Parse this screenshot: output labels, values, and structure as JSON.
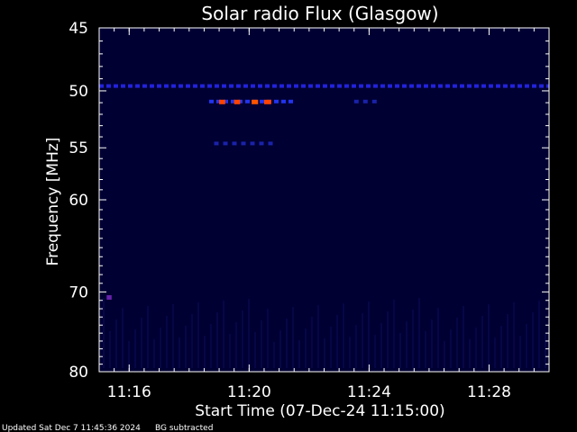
{
  "chart_data": {
    "type": "heatmap",
    "title": "Solar radio Flux (Glasgow)",
    "ylabel": "Frequency [MHz]",
    "xlabel": "Start Time (07-Dec-24 11:15:00)",
    "y_scale": "log",
    "ylim": [
      45,
      80
    ],
    "y_inverted": true,
    "xlim": [
      "11:15:00",
      "11:30:00"
    ],
    "y_ticks": [
      45,
      50,
      55,
      60,
      70,
      80
    ],
    "y_tick_labels": [
      "45",
      "50",
      "55",
      "60",
      "70",
      "80"
    ],
    "x_ticks": [
      "11:16",
      "11:20",
      "11:24",
      "11:28"
    ],
    "background_color": "#000033",
    "features": [
      {
        "kind": "band",
        "freq_mhz": 49.6,
        "t_start": "11:15:00",
        "t_end": "11:30:00",
        "intensity": "medium",
        "color": "#2222dd"
      },
      {
        "kind": "band",
        "freq_mhz": 50.9,
        "t_start": "11:18:40",
        "t_end": "11:21:30",
        "intensity": "medium",
        "color": "#2233ee"
      },
      {
        "kind": "burst",
        "freq_mhz": 50.9,
        "t_start": "11:19:00",
        "t_end": "11:19:12",
        "intensity": "high",
        "color": "#ff4400"
      },
      {
        "kind": "burst",
        "freq_mhz": 50.9,
        "t_start": "11:19:30",
        "t_end": "11:19:42",
        "intensity": "high",
        "color": "#ff4400"
      },
      {
        "kind": "burst",
        "freq_mhz": 50.9,
        "t_start": "11:20:05",
        "t_end": "11:20:18",
        "intensity": "high",
        "color": "#ff5500"
      },
      {
        "kind": "burst",
        "freq_mhz": 50.9,
        "t_start": "11:20:30",
        "t_end": "11:20:44",
        "intensity": "high",
        "color": "#ff4400"
      },
      {
        "kind": "band",
        "freq_mhz": 50.9,
        "t_start": "11:23:30",
        "t_end": "11:24:10",
        "intensity": "low",
        "color": "#1a22aa"
      },
      {
        "kind": "band",
        "freq_mhz": 54.6,
        "t_start": "11:18:50",
        "t_end": "11:20:50",
        "intensity": "low",
        "color": "#1a22aa"
      },
      {
        "kind": "burst",
        "freq_mhz": 70.6,
        "t_start": "11:15:15",
        "t_end": "11:15:25",
        "intensity": "medium",
        "color": "#6622aa"
      }
    ]
  },
  "footer": {
    "updated": "Updated Sat Dec  7 11:45:36 2024",
    "note": "BG subtracted"
  }
}
